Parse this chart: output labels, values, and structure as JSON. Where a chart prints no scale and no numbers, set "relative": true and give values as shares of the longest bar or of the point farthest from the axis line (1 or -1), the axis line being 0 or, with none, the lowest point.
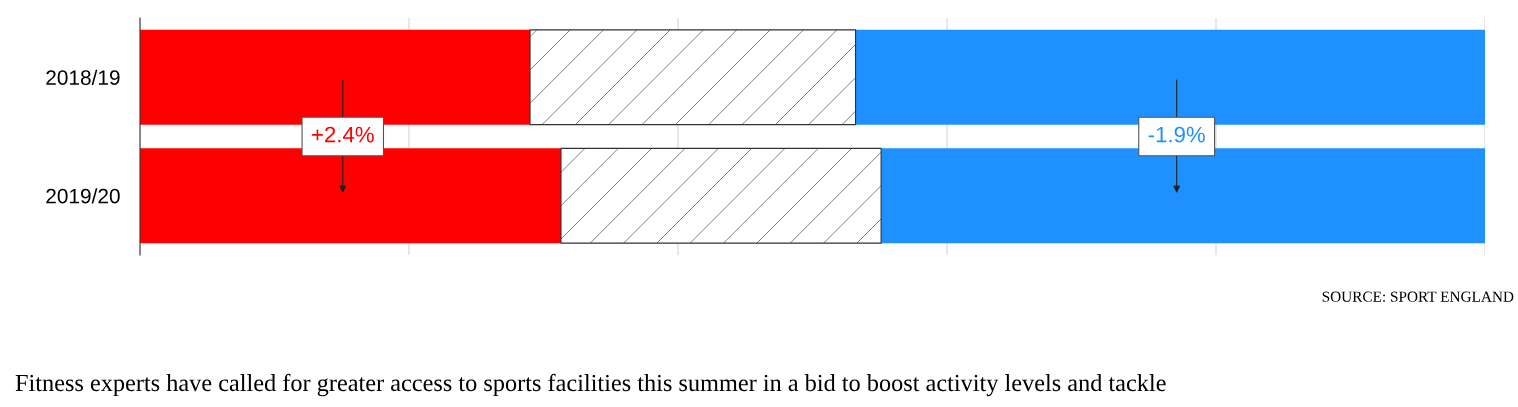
{
  "chart_data": {
    "type": "bar",
    "orientation": "horizontal",
    "stacked": true,
    "relative": true,
    "grid": "x",
    "categories": [
      "2018/19",
      "2019/20"
    ],
    "series": [
      {
        "color": "#ff0000",
        "values": [
          0.29,
          0.313
        ]
      },
      {
        "color": "#ffffff",
        "values": [
          0.242,
          0.238
        ]
      },
      {
        "color": "#1e90ff",
        "values": [
          0.468,
          0.449
        ]
      }
    ],
    "annotations": [
      "+2.4%",
      "-1.9%",
      "SOURCE: SPORT ENGLAND",
      "Fitness experts have called for greater access to sports facilities this summer in a bid to boost activity levels and tackle"
    ]
  }
}
